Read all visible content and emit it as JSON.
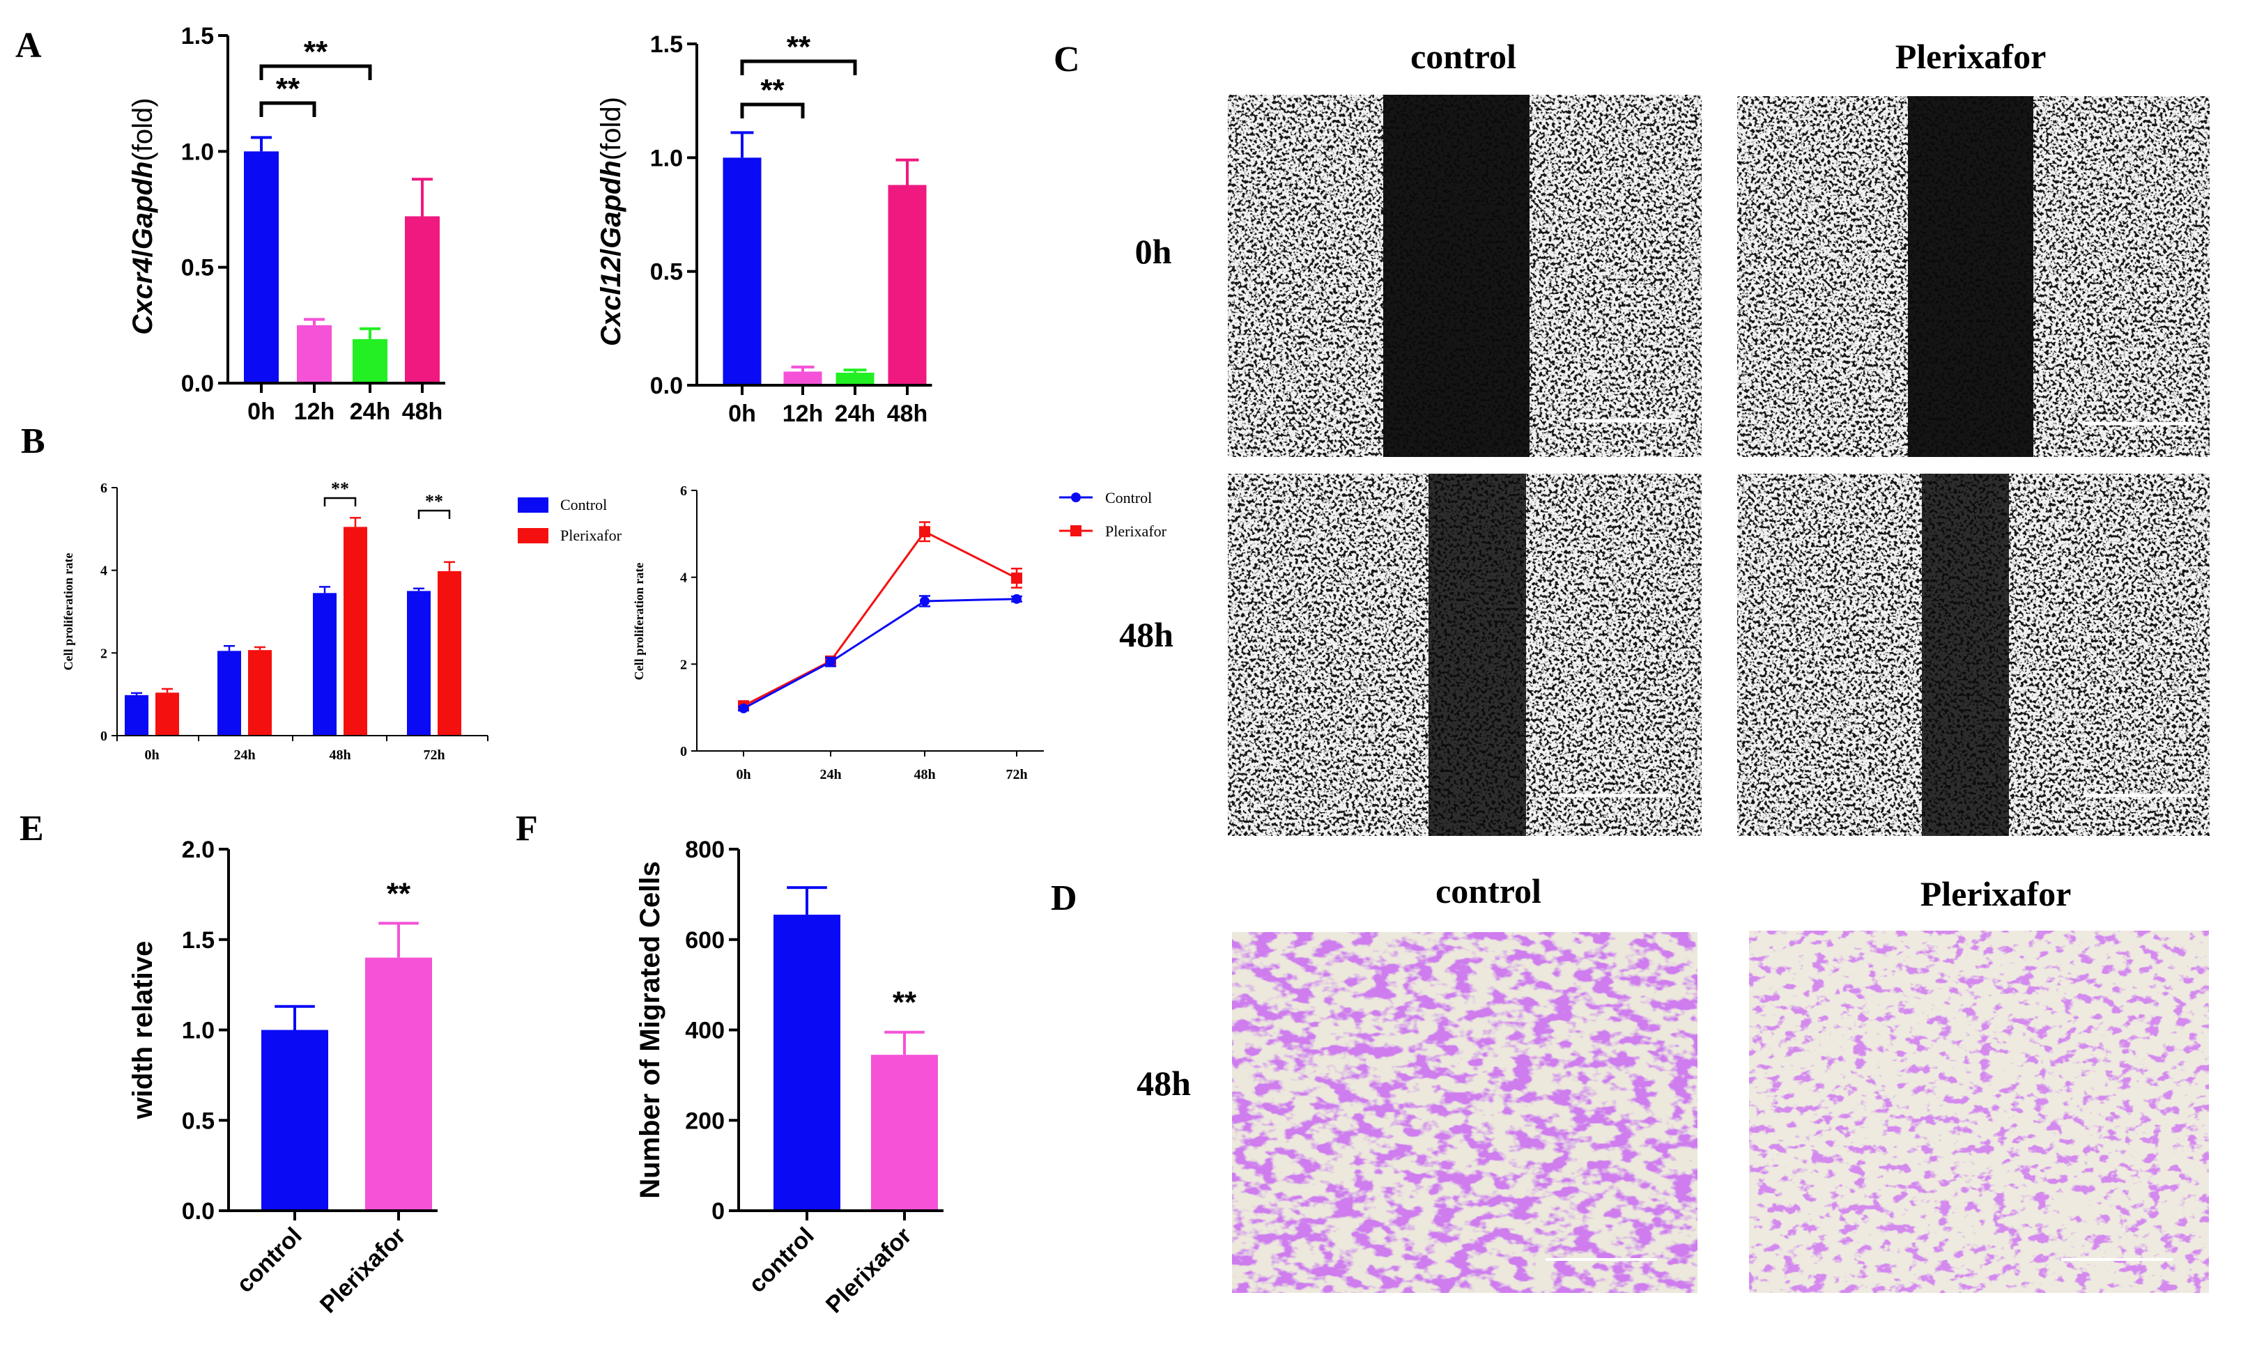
{
  "figure": {
    "panel_labels": {
      "A": "A",
      "B": "B",
      "C": "C",
      "D": "D",
      "E": "E",
      "F": "F"
    },
    "significance": "**"
  },
  "colors": {
    "blue": "#0a0af5",
    "pink": "#f552d8",
    "green": "#22f022",
    "magenta": "#f0197f",
    "red": "#f51010"
  },
  "chart_data": [
    {
      "id": "A1",
      "type": "bar",
      "ylabel_gene1": "Cxcr4",
      "ylabel_sep": "/",
      "ylabel_gene2": "Gapdh",
      "ylabel_unit": "(fold)",
      "categories": [
        "0h",
        "12h",
        "24h",
        "48h"
      ],
      "values": [
        1.0,
        0.25,
        0.19,
        0.72
      ],
      "errors": [
        0.06,
        0.025,
        0.045,
        0.16
      ],
      "colors": [
        "#0a0af5",
        "#f552d8",
        "#22f022",
        "#f0197f"
      ],
      "ylim": [
        0,
        1.5
      ],
      "yticks": [
        "0.0",
        "0.5",
        "1.0",
        "1.5"
      ],
      "comparisons": [
        {
          "from": "0h",
          "to": "12h",
          "label": "**"
        },
        {
          "from": "0h",
          "to": "24h",
          "label": "**"
        }
      ]
    },
    {
      "id": "A2",
      "type": "bar",
      "ylabel_gene1": "Cxcl12",
      "ylabel_sep": "/",
      "ylabel_gene2": "Gapdh",
      "ylabel_unit": "(fold)",
      "categories": [
        "0h",
        "12h",
        "24h",
        "48h"
      ],
      "values": [
        1.0,
        0.06,
        0.055,
        0.88
      ],
      "errors": [
        0.11,
        0.02,
        0.012,
        0.11
      ],
      "colors": [
        "#0a0af5",
        "#f552d8",
        "#22f022",
        "#f0197f"
      ],
      "ylim": [
        0,
        1.5
      ],
      "yticks": [
        "0.0",
        "0.5",
        "1.0",
        "1.5"
      ],
      "comparisons": [
        {
          "from": "0h",
          "to": "12h",
          "label": "**"
        },
        {
          "from": "0h",
          "to": "24h",
          "label": "**"
        }
      ]
    },
    {
      "id": "B1",
      "type": "bar",
      "ylabel": "Cell proliferation rate",
      "categories": [
        "0h",
        "24h",
        "48h",
        "72h"
      ],
      "series": [
        {
          "name": "Control",
          "values": [
            0.98,
            2.05,
            3.45,
            3.5
          ],
          "errors": [
            0.05,
            0.12,
            0.15,
            0.06
          ],
          "color": "#0a0af5"
        },
        {
          "name": "Plerixafor",
          "values": [
            1.04,
            2.07,
            5.05,
            3.98
          ],
          "errors": [
            0.09,
            0.07,
            0.22,
            0.22
          ],
          "color": "#f51010"
        }
      ],
      "ylim": [
        0,
        6
      ],
      "yticks": [
        "0",
        "2",
        "4",
        "6"
      ],
      "significant_at": [
        "48h",
        "72h"
      ]
    },
    {
      "id": "B2",
      "type": "line",
      "ylabel": "Cell proliferation rate",
      "categories": [
        "0h",
        "24h",
        "48h",
        "72h"
      ],
      "series": [
        {
          "name": "Control",
          "values": [
            0.98,
            2.05,
            3.45,
            3.5
          ],
          "errors": [
            0.05,
            0.1,
            0.12,
            0.06
          ],
          "color": "#0a0af5",
          "marker": "circle"
        },
        {
          "name": "Plerixafor",
          "values": [
            1.04,
            2.07,
            5.05,
            3.98
          ],
          "errors": [
            0.09,
            0.07,
            0.22,
            0.22
          ],
          "color": "#f51010",
          "marker": "square"
        }
      ],
      "ylim": [
        0,
        6
      ],
      "yticks": [
        "0",
        "2",
        "4",
        "6"
      ]
    },
    {
      "id": "E",
      "type": "bar",
      "ylabel": "width relative",
      "categories": [
        "control",
        "Plerixafor"
      ],
      "values": [
        1.0,
        1.4
      ],
      "errors": [
        0.13,
        0.19
      ],
      "colors": [
        "#0a0af5",
        "#f552d8"
      ],
      "ylim": [
        0,
        2.0
      ],
      "yticks": [
        "0.0",
        "0.5",
        "1.0",
        "1.5",
        "2.0"
      ],
      "significant": [
        "Plerixafor"
      ]
    },
    {
      "id": "F",
      "type": "bar",
      "ylabel": "Number of Migrated Cells",
      "categories": [
        "control",
        "Plerixafor"
      ],
      "values": [
        655,
        345
      ],
      "errors": [
        60,
        50
      ],
      "colors": [
        "#0a0af5",
        "#f552d8"
      ],
      "ylim": [
        0,
        800
      ],
      "yticks": [
        "0",
        "200",
        "400",
        "600",
        "800"
      ],
      "significant": [
        "Plerixafor"
      ]
    }
  ],
  "panel_C": {
    "col_titles": [
      "control",
      "Plerixafor"
    ],
    "row_labels": [
      "0h",
      "48h"
    ]
  },
  "panel_D": {
    "col_titles": [
      "control",
      "Plerixafor"
    ],
    "row_labels": [
      "48h"
    ]
  }
}
